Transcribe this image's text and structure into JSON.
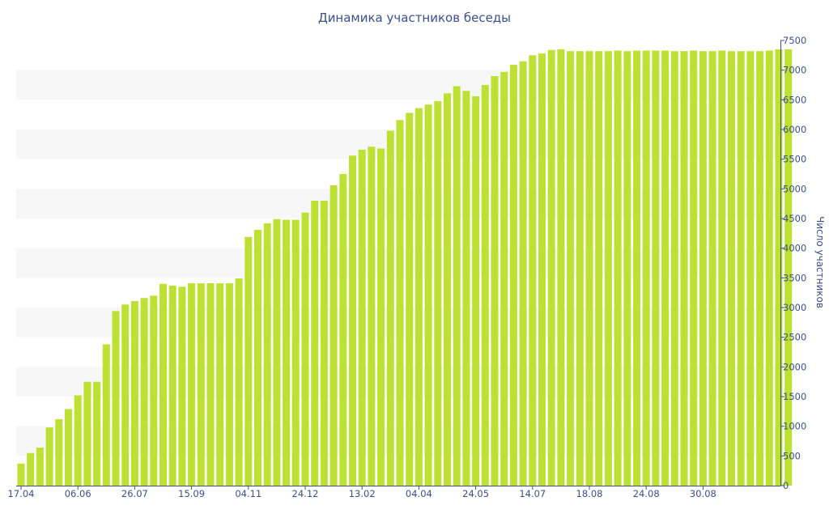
{
  "chart_data": {
    "type": "bar",
    "title": "Динамика участников беседы",
    "ylabel": "Число участников",
    "xlabel": "",
    "ylim": [
      0,
      7500
    ],
    "y_ticks": [
      "0",
      "500",
      "1000",
      "1500",
      "2000",
      "2500",
      "3000",
      "3500",
      "4000",
      "4500",
      "5000",
      "5500",
      "6000",
      "6500",
      "7000",
      "7500"
    ],
    "y_axis_position": "right",
    "grid": "alternating horizontal bands",
    "x_tick_labels": [
      "17.04",
      "06.06",
      "26.07",
      "15.09",
      "04.11",
      "24.12",
      "13.02",
      "04.04",
      "24.05",
      "14.07",
      "18.08",
      "24.08",
      "30.08"
    ],
    "bar_color": "#bde132",
    "band_color": "#f7f7f7",
    "axis_color": "#3b4f8c",
    "values": [
      370,
      550,
      640,
      980,
      1120,
      1290,
      1520,
      1750,
      1750,
      2380,
      2940,
      3050,
      3110,
      3160,
      3200,
      3400,
      3370,
      3350,
      3410,
      3410,
      3410,
      3410,
      3410,
      3490,
      4190,
      4310,
      4420,
      4490,
      4480,
      4480,
      4600,
      4800,
      4800,
      5060,
      5250,
      5560,
      5660,
      5710,
      5680,
      5980,
      6160,
      6280,
      6360,
      6420,
      6480,
      6610,
      6730,
      6650,
      6560,
      6750,
      6900,
      6970,
      7090,
      7150,
      7250,
      7280,
      7340,
      7350,
      7320,
      7320,
      7320,
      7320,
      7320,
      7330,
      7320,
      7330,
      7330,
      7330,
      7330,
      7320,
      7320,
      7330,
      7320,
      7320,
      7330,
      7320,
      7320,
      7320,
      7320,
      7330,
      7350,
      7350
    ]
  }
}
